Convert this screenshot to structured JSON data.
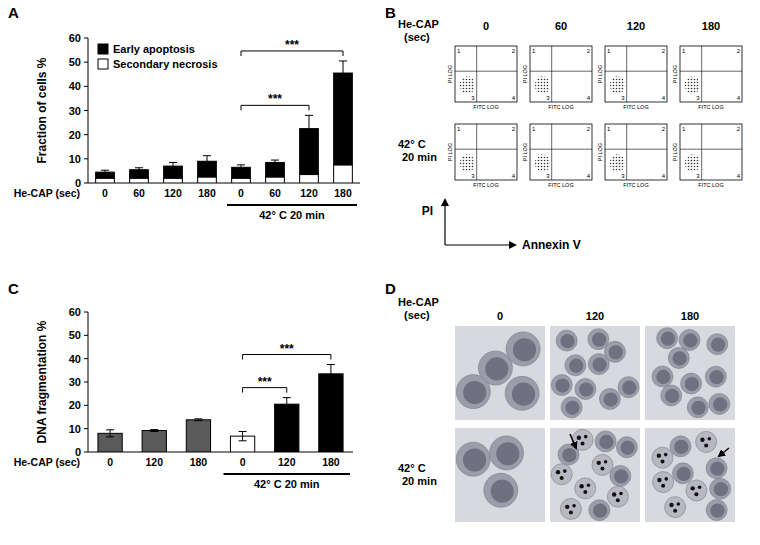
{
  "panel_labels": [
    "A",
    "B",
    "C",
    "D"
  ],
  "chart_data": [
    {
      "type": "bar",
      "stacked": true,
      "y_label": "Fraction of cells %",
      "x_label": "He-CAP (sec)",
      "categories": [
        "0",
        "60",
        "120",
        "180",
        "0",
        "60",
        "120",
        "180"
      ],
      "series": [
        {
          "name": "Secondary necrosis",
          "color": "#ffffff",
          "values": [
            2,
            2,
            2,
            2.5,
            2,
            2.5,
            3.5,
            7.5
          ]
        },
        {
          "name": "Early apoptosis",
          "color": "#000000",
          "values": [
            2.5,
            3.5,
            5,
            6.5,
            4.5,
            6,
            19,
            38
          ],
          "errors": [
            0.8,
            0.8,
            1.5,
            2.3,
            1,
            1,
            5.5,
            5
          ]
        }
      ],
      "ylim": [
        0,
        60
      ],
      "yticks": [
        0,
        10,
        20,
        30,
        40,
        50,
        60
      ],
      "legend": "upper-left",
      "groups": [
        {
          "label": "42° C 20 min",
          "from": 4,
          "to": 7
        }
      ],
      "annotations": [
        {
          "text": "***",
          "from": 4,
          "to": 6
        },
        {
          "text": "***",
          "from": 4,
          "to": 7
        }
      ]
    },
    {
      "type": "bar",
      "y_label": "DNA fragmentation %",
      "x_label": "He-CAP (sec)",
      "categories": [
        "0",
        "120",
        "180",
        "0",
        "120",
        "180"
      ],
      "values": [
        8,
        9.2,
        13.8,
        6.8,
        20.5,
        33.5
      ],
      "errors": [
        1.5,
        0.4,
        0.4,
        2,
        2.8,
        4
      ],
      "colors": [
        "#5a5a5a",
        "#5a5a5a",
        "#5a5a5a",
        "#ffffff",
        "#000000",
        "#000000"
      ],
      "ylim": [
        0,
        60
      ],
      "yticks": [
        0,
        10,
        20,
        30,
        40,
        50,
        60
      ],
      "groups": [
        {
          "label": "42° C 20 min",
          "from": 3,
          "to": 5
        }
      ],
      "annotations": [
        {
          "text": "***",
          "from": 3,
          "to": 4
        },
        {
          "text": "***",
          "from": 3,
          "to": 5
        }
      ]
    }
  ],
  "panel_b": {
    "header": [
      "He-CAP",
      "(sec)"
    ],
    "columns": [
      "0",
      "60",
      "120",
      "180"
    ],
    "treated_label": [
      "42° C",
      "20 min"
    ],
    "axis_y": "PI",
    "axis_x": "Annexin V",
    "plot_x_label": "FITC LOG",
    "plot_y_label": "PI LOG",
    "quadrants": [
      "1",
      "2",
      "3",
      "4"
    ]
  },
  "panel_d": {
    "header": [
      "He-CAP",
      "(sec)"
    ],
    "columns": [
      "0",
      "120",
      "180"
    ],
    "treated_label": [
      "42° C",
      "20 min"
    ]
  }
}
